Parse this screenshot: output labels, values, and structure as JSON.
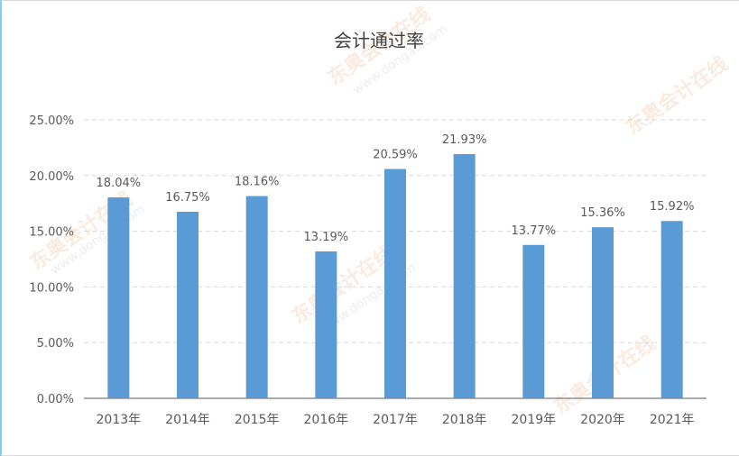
{
  "watermark": {
    "brand": "东奥会计在线",
    "site": "www.dongao.com"
  },
  "chart_data": {
    "type": "bar",
    "title": "会计通过率",
    "xlabel": "",
    "ylabel": "",
    "categories": [
      "2013年",
      "2014年",
      "2015年",
      "2016年",
      "2017年",
      "2018年",
      "2019年",
      "2020年",
      "2021年"
    ],
    "values": [
      18.04,
      16.75,
      18.16,
      13.19,
      20.59,
      21.93,
      13.77,
      15.36,
      15.92
    ],
    "data_labels": [
      "18.04%",
      "16.75%",
      "18.16%",
      "13.19%",
      "20.59%",
      "21.93%",
      "13.77%",
      "15.36%",
      "15.92%"
    ],
    "yticks": [
      "0.00%",
      "5.00%",
      "10.00%",
      "15.00%",
      "20.00%",
      "25.00%"
    ],
    "ylim": [
      0,
      25
    ],
    "grid": true,
    "legend": "none",
    "colors": {
      "bar": "#5b9bd5",
      "grid": "#d9d9d9",
      "axis": "#595959",
      "text": "#595959"
    }
  }
}
